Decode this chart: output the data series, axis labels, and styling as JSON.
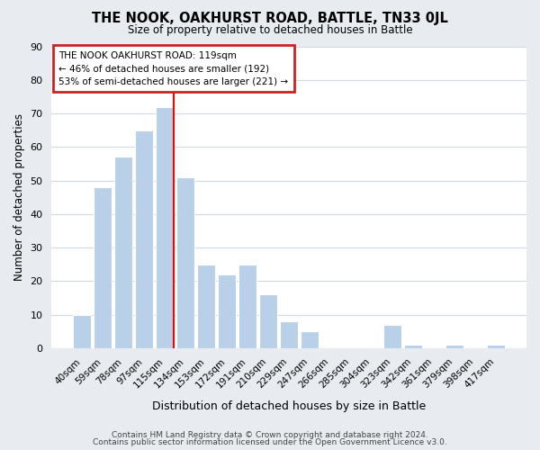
{
  "title": "THE NOOK, OAKHURST ROAD, BATTLE, TN33 0JL",
  "subtitle": "Size of property relative to detached houses in Battle",
  "xlabel": "Distribution of detached houses by size in Battle",
  "ylabel": "Number of detached properties",
  "footnote1": "Contains HM Land Registry data © Crown copyright and database right 2024.",
  "footnote2": "Contains public sector information licensed under the Open Government Licence v3.0.",
  "bar_labels": [
    "40sqm",
    "59sqm",
    "78sqm",
    "97sqm",
    "115sqm",
    "134sqm",
    "153sqm",
    "172sqm",
    "191sqm",
    "210sqm",
    "229sqm",
    "247sqm",
    "266sqm",
    "285sqm",
    "304sqm",
    "323sqm",
    "342sqm",
    "361sqm",
    "379sqm",
    "398sqm",
    "417sqm"
  ],
  "bar_values": [
    10,
    48,
    57,
    65,
    72,
    51,
    25,
    22,
    25,
    16,
    8,
    5,
    0,
    0,
    0,
    7,
    1,
    0,
    1,
    0,
    1
  ],
  "highlight_index": 4,
  "normal_color": "#b8d0e8",
  "ylim": [
    0,
    90
  ],
  "yticks": [
    0,
    10,
    20,
    30,
    40,
    50,
    60,
    70,
    80,
    90
  ],
  "annotation_title": "THE NOOK OAKHURST ROAD: 119sqm",
  "annotation_line1": "← 46% of detached houses are smaller (192)",
  "annotation_line2": "53% of semi-detached houses are larger (221) →",
  "bg_color": "#e8ecf0",
  "plot_bg_color": "#ffffff",
  "grid_color": "#d0d8e0"
}
